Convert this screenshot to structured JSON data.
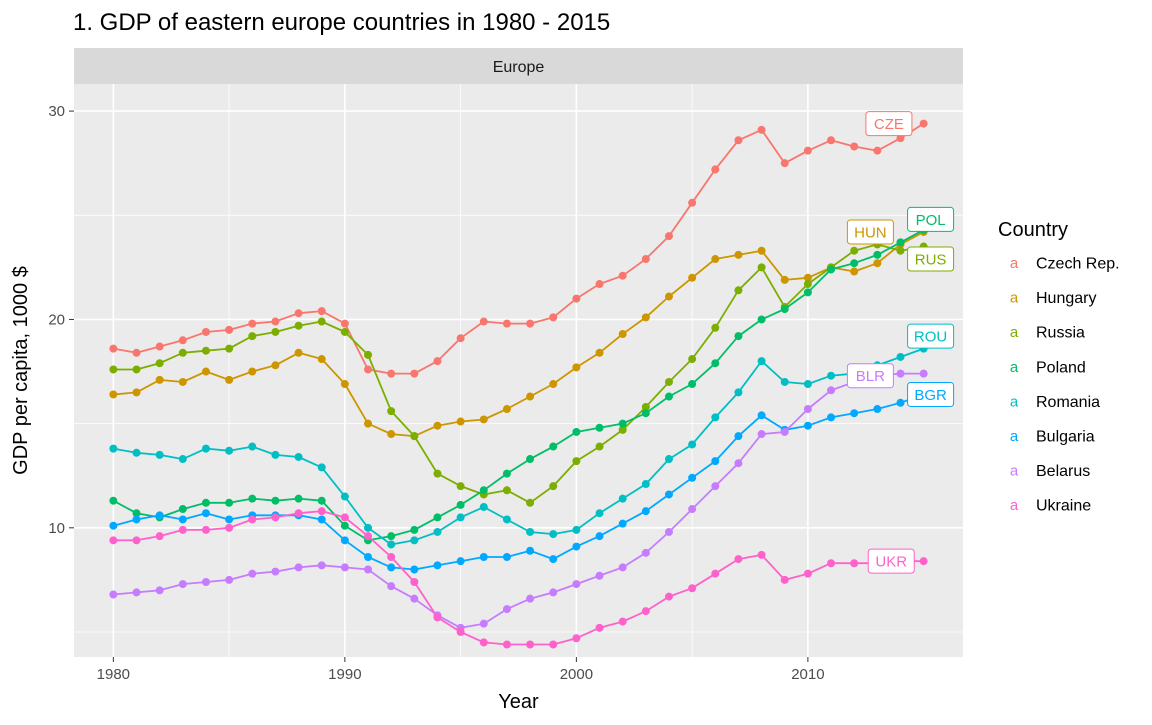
{
  "chart_data": {
    "type": "line",
    "title": "1. GDP of eastern europe countries in 1980 - 2015",
    "facet_label": "Europe",
    "xlabel": "Year",
    "ylabel": "GDP per capita, 1000 $",
    "xlim": [
      1978.3,
      2016.7
    ],
    "ylim": [
      3.8,
      31.3
    ],
    "x_ticks": [
      1980,
      1990,
      2000,
      2010
    ],
    "y_ticks": [
      10,
      20,
      30
    ],
    "legend_title": "Country",
    "legend_position": "right",
    "legend_key_symbol": "a",
    "grid": true,
    "x": [
      1980,
      1981,
      1982,
      1983,
      1984,
      1985,
      1986,
      1987,
      1988,
      1989,
      1990,
      1991,
      1992,
      1993,
      1994,
      1995,
      1996,
      1997,
      1998,
      1999,
      2000,
      2001,
      2002,
      2003,
      2004,
      2005,
      2006,
      2007,
      2008,
      2009,
      2010,
      2011,
      2012,
      2013,
      2014,
      2015
    ],
    "series": [
      {
        "name": "Czech Rep.",
        "code": "CZE",
        "color": "#F8766D",
        "values": [
          18.6,
          18.4,
          18.7,
          19.0,
          19.4,
          19.5,
          19.8,
          19.9,
          20.3,
          20.4,
          19.8,
          17.6,
          17.4,
          17.4,
          18.0,
          19.1,
          19.9,
          19.8,
          19.8,
          20.1,
          21.0,
          21.7,
          22.1,
          22.9,
          24.0,
          25.6,
          27.2,
          28.6,
          29.1,
          27.5,
          28.1,
          28.6,
          28.3,
          28.1,
          28.7,
          29.4
        ]
      },
      {
        "name": "Hungary",
        "code": "HUN",
        "color": "#CD9600",
        "values": [
          16.4,
          16.5,
          17.1,
          17.0,
          17.5,
          17.1,
          17.5,
          17.8,
          18.4,
          18.1,
          16.9,
          15.0,
          14.5,
          14.4,
          14.9,
          15.1,
          15.2,
          15.7,
          16.3,
          16.9,
          17.7,
          18.4,
          19.3,
          20.1,
          21.1,
          22.0,
          22.9,
          23.1,
          23.3,
          21.9,
          22.0,
          22.5,
          22.3,
          22.7,
          23.6,
          24.2
        ]
      },
      {
        "name": "Russia",
        "code": "RUS",
        "color": "#7CAE00",
        "values": [
          17.6,
          17.6,
          17.9,
          18.4,
          18.5,
          18.6,
          19.2,
          19.4,
          19.7,
          19.9,
          19.4,
          18.3,
          15.6,
          14.4,
          12.6,
          12.0,
          11.6,
          11.8,
          11.2,
          12.0,
          13.2,
          13.9,
          14.7,
          15.8,
          17.0,
          18.1,
          19.6,
          21.4,
          22.5,
          20.6,
          21.7,
          22.5,
          23.3,
          23.6,
          23.3,
          23.5
        ]
      },
      {
        "name": "Poland",
        "code": "POL",
        "color": "#00BE67",
        "values": [
          11.3,
          10.7,
          10.5,
          10.9,
          11.2,
          11.2,
          11.4,
          11.3,
          11.4,
          11.3,
          10.1,
          9.4,
          9.6,
          9.9,
          10.5,
          11.1,
          11.8,
          12.6,
          13.3,
          13.9,
          14.6,
          14.8,
          15.0,
          15.5,
          16.3,
          16.9,
          17.9,
          19.2,
          20.0,
          20.5,
          21.3,
          22.4,
          22.7,
          23.1,
          23.7,
          24.3
        ]
      },
      {
        "name": "Romania",
        "code": "ROU",
        "color": "#00BFC4",
        "values": [
          13.8,
          13.6,
          13.5,
          13.3,
          13.8,
          13.7,
          13.9,
          13.5,
          13.4,
          12.9,
          11.5,
          10.0,
          9.2,
          9.4,
          9.8,
          10.5,
          11.0,
          10.4,
          9.8,
          9.7,
          9.9,
          10.7,
          11.4,
          12.1,
          13.3,
          14.0,
          15.3,
          16.5,
          18.0,
          17.0,
          16.9,
          17.3,
          17.4,
          17.8,
          18.2,
          18.6
        ]
      },
      {
        "name": "Bulgaria",
        "code": "BGR",
        "color": "#00A9FF",
        "values": [
          10.1,
          10.4,
          10.6,
          10.4,
          10.7,
          10.4,
          10.6,
          10.6,
          10.6,
          10.4,
          9.4,
          8.6,
          8.1,
          8.0,
          8.2,
          8.4,
          8.6,
          8.6,
          8.9,
          8.5,
          9.1,
          9.6,
          10.2,
          10.8,
          11.6,
          12.4,
          13.2,
          14.4,
          15.4,
          14.7,
          14.9,
          15.3,
          15.5,
          15.7,
          16.0,
          16.4
        ]
      },
      {
        "name": "Belarus",
        "code": "BLR",
        "color": "#C77CFF",
        "values": [
          6.8,
          6.9,
          7.0,
          7.3,
          7.4,
          7.5,
          7.8,
          7.9,
          8.1,
          8.2,
          8.1,
          8.0,
          7.2,
          6.6,
          5.8,
          5.2,
          5.4,
          6.1,
          6.6,
          6.9,
          7.3,
          7.7,
          8.1,
          8.8,
          9.8,
          10.9,
          12.0,
          13.1,
          14.5,
          14.6,
          15.7,
          16.6,
          17.0,
          17.3,
          17.4,
          17.4
        ]
      },
      {
        "name": "Ukraine",
        "code": "UKR",
        "color": "#FF61CC",
        "values": [
          9.4,
          9.4,
          9.6,
          9.9,
          9.9,
          10.0,
          10.4,
          10.5,
          10.7,
          10.8,
          10.5,
          9.6,
          8.6,
          7.4,
          5.7,
          5.0,
          4.5,
          4.4,
          4.4,
          4.4,
          4.7,
          5.2,
          5.5,
          6.0,
          6.7,
          7.1,
          7.8,
          8.5,
          8.7,
          7.5,
          7.8,
          8.3,
          8.3,
          8.3,
          8.4,
          8.4
        ]
      }
    ]
  }
}
